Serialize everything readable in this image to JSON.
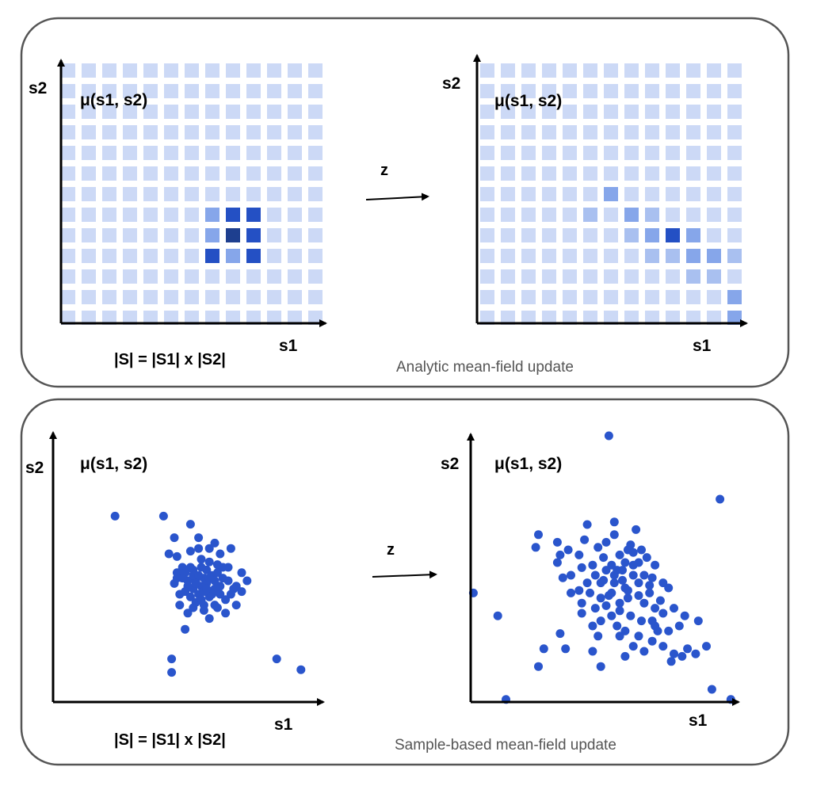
{
  "colors": {
    "cell_light": "#ccd9f6",
    "cell_1": "#a9c0f0",
    "cell_2": "#86a6ea",
    "cell_3": "#3966d4",
    "cell_4": "#2450c4",
    "cell_5": "#1e3f8f",
    "dot": "#2a55cc",
    "panel_border": "#555555"
  },
  "panels": [
    {
      "caption": "Analytic mean-field update",
      "arrow_label": "z",
      "left": {
        "y_axis_label": "s2",
        "x_axis_label": "",
        "mu_label": "μ(s1, s2)",
        "cardinality_label": "|S| = |S1| x |S2|",
        "grid": {
          "cols": 13,
          "rows": 13,
          "highlighted": [
            {
              "col": 7,
              "row": 7,
              "level": 2
            },
            {
              "col": 8,
              "row": 7,
              "level": 4
            },
            {
              "col": 9,
              "row": 7,
              "level": 4
            },
            {
              "col": 7,
              "row": 8,
              "level": 2
            },
            {
              "col": 8,
              "row": 8,
              "level": 5
            },
            {
              "col": 9,
              "row": 8,
              "level": 4
            },
            {
              "col": 7,
              "row": 9,
              "level": 4
            },
            {
              "col": 8,
              "row": 9,
              "level": 2
            },
            {
              "col": 9,
              "row": 9,
              "level": 4
            }
          ]
        }
      },
      "right": {
        "y_axis_label": "s2",
        "x_axis_label": "s1",
        "mu_label": "μ(s1, s2)",
        "grid": {
          "cols": 13,
          "rows": 13,
          "highlighted": [
            {
              "col": 6,
              "row": 6,
              "level": 2
            },
            {
              "col": 5,
              "row": 7,
              "level": 1
            },
            {
              "col": 7,
              "row": 7,
              "level": 2
            },
            {
              "col": 8,
              "row": 7,
              "level": 1
            },
            {
              "col": 7,
              "row": 8,
              "level": 1
            },
            {
              "col": 8,
              "row": 8,
              "level": 2
            },
            {
              "col": 9,
              "row": 8,
              "level": 4
            },
            {
              "col": 10,
              "row": 8,
              "level": 2
            },
            {
              "col": 8,
              "row": 9,
              "level": 1
            },
            {
              "col": 9,
              "row": 9,
              "level": 1
            },
            {
              "col": 10,
              "row": 9,
              "level": 2
            },
            {
              "col": 11,
              "row": 9,
              "level": 2
            },
            {
              "col": 12,
              "row": 9,
              "level": 1
            },
            {
              "col": 10,
              "row": 10,
              "level": 1
            },
            {
              "col": 11,
              "row": 10,
              "level": 1
            },
            {
              "col": 12,
              "row": 11,
              "level": 2
            },
            {
              "col": 12,
              "row": 12,
              "level": 2
            }
          ]
        }
      }
    },
    {
      "caption": "Sample-based mean-field update",
      "arrow_label": "z",
      "left": {
        "y_axis_label": "s2",
        "x_axis_label": "s1",
        "mu_label": "μ(s1, s2)",
        "cardinality_label": "|S| = |S1| x |S2|",
        "points": [
          [
            0.23,
            0.69
          ],
          [
            0.41,
            0.69
          ],
          [
            0.51,
            0.66
          ],
          [
            0.54,
            0.61
          ],
          [
            0.45,
            0.61
          ],
          [
            0.46,
            0.54
          ],
          [
            0.6,
            0.59
          ],
          [
            0.43,
            0.55
          ],
          [
            0.54,
            0.57
          ],
          [
            0.51,
            0.56
          ],
          [
            0.55,
            0.53
          ],
          [
            0.58,
            0.57
          ],
          [
            0.62,
            0.55
          ],
          [
            0.66,
            0.57
          ],
          [
            0.52,
            0.49
          ],
          [
            0.48,
            0.5
          ],
          [
            0.5,
            0.45
          ],
          [
            0.57,
            0.49
          ],
          [
            0.61,
            0.51
          ],
          [
            0.65,
            0.5
          ],
          [
            0.7,
            0.48
          ],
          [
            0.72,
            0.45
          ],
          [
            0.68,
            0.43
          ],
          [
            0.63,
            0.46
          ],
          [
            0.56,
            0.46
          ],
          [
            0.52,
            0.42
          ],
          [
            0.58,
            0.39
          ],
          [
            0.53,
            0.37
          ],
          [
            0.47,
            0.4
          ],
          [
            0.45,
            0.44
          ],
          [
            0.46,
            0.48
          ],
          [
            0.49,
            0.48
          ],
          [
            0.53,
            0.45
          ],
          [
            0.55,
            0.43
          ],
          [
            0.6,
            0.42
          ],
          [
            0.62,
            0.4
          ],
          [
            0.64,
            0.38
          ],
          [
            0.6,
            0.36
          ],
          [
            0.56,
            0.34
          ],
          [
            0.54,
            0.4
          ],
          [
            0.51,
            0.39
          ],
          [
            0.57,
            0.44
          ],
          [
            0.59,
            0.47
          ],
          [
            0.55,
            0.5
          ],
          [
            0.58,
            0.52
          ],
          [
            0.61,
            0.48
          ],
          [
            0.67,
            0.42
          ],
          [
            0.7,
            0.41
          ],
          [
            0.65,
            0.45
          ],
          [
            0.62,
            0.43
          ],
          [
            0.56,
            0.41
          ],
          [
            0.5,
            0.43
          ],
          [
            0.48,
            0.46
          ],
          [
            0.52,
            0.47
          ],
          [
            0.54,
            0.47
          ],
          [
            0.53,
            0.44
          ],
          [
            0.49,
            0.41
          ],
          [
            0.58,
            0.46
          ],
          [
            0.47,
            0.36
          ],
          [
            0.56,
            0.36
          ],
          [
            0.64,
            0.33
          ],
          [
            0.58,
            0.31
          ],
          [
            0.5,
            0.33
          ],
          [
            0.66,
            0.4
          ],
          [
            0.61,
            0.35
          ],
          [
            0.51,
            0.5
          ],
          [
            0.59,
            0.4
          ],
          [
            0.55,
            0.38
          ],
          [
            0.57,
            0.42
          ],
          [
            0.6,
            0.45
          ],
          [
            0.52,
            0.35
          ],
          [
            0.49,
            0.27
          ],
          [
            0.46,
            0.46
          ],
          [
            0.63,
            0.5
          ],
          [
            0.68,
            0.36
          ],
          [
            0.44,
            0.16
          ],
          [
            0.44,
            0.11
          ],
          [
            0.83,
            0.16
          ],
          [
            0.92,
            0.12
          ]
        ]
      },
      "right": {
        "y_axis_label": "s2",
        "x_axis_label": "s1",
        "mu_label": "μ(s1, s2)",
        "points": [
          [
            0.51,
            1.05
          ],
          [
            0.92,
            0.8
          ],
          [
            0.01,
            0.43
          ],
          [
            0.1,
            0.34
          ],
          [
            0.25,
            0.66
          ],
          [
            0.43,
            0.7
          ],
          [
            0.53,
            0.71
          ],
          [
            0.59,
            0.62
          ],
          [
            0.63,
            0.6
          ],
          [
            0.58,
            0.6
          ],
          [
            0.33,
            0.58
          ],
          [
            0.32,
            0.55
          ],
          [
            0.41,
            0.53
          ],
          [
            0.49,
            0.57
          ],
          [
            0.52,
            0.54
          ],
          [
            0.55,
            0.58
          ],
          [
            0.6,
            0.59
          ],
          [
            0.65,
            0.57
          ],
          [
            0.68,
            0.54
          ],
          [
            0.73,
            0.45
          ],
          [
            0.57,
            0.55
          ],
          [
            0.62,
            0.55
          ],
          [
            0.54,
            0.52
          ],
          [
            0.5,
            0.52
          ],
          [
            0.46,
            0.5
          ],
          [
            0.37,
            0.5
          ],
          [
            0.34,
            0.49
          ],
          [
            0.43,
            0.47
          ],
          [
            0.48,
            0.47
          ],
          [
            0.53,
            0.47
          ],
          [
            0.56,
            0.48
          ],
          [
            0.6,
            0.5
          ],
          [
            0.64,
            0.5
          ],
          [
            0.67,
            0.49
          ],
          [
            0.71,
            0.47
          ],
          [
            0.57,
            0.45
          ],
          [
            0.52,
            0.43
          ],
          [
            0.48,
            0.41
          ],
          [
            0.44,
            0.43
          ],
          [
            0.4,
            0.44
          ],
          [
            0.37,
            0.43
          ],
          [
            0.41,
            0.39
          ],
          [
            0.46,
            0.37
          ],
          [
            0.5,
            0.38
          ],
          [
            0.55,
            0.39
          ],
          [
            0.58,
            0.41
          ],
          [
            0.62,
            0.42
          ],
          [
            0.66,
            0.43
          ],
          [
            0.7,
            0.4
          ],
          [
            0.75,
            0.37
          ],
          [
            0.79,
            0.34
          ],
          [
            0.84,
            0.32
          ],
          [
            0.77,
            0.3
          ],
          [
            0.73,
            0.28
          ],
          [
            0.68,
            0.3
          ],
          [
            0.63,
            0.32
          ],
          [
            0.59,
            0.34
          ],
          [
            0.55,
            0.36
          ],
          [
            0.52,
            0.34
          ],
          [
            0.48,
            0.32
          ],
          [
            0.45,
            0.3
          ],
          [
            0.57,
            0.28
          ],
          [
            0.62,
            0.26
          ],
          [
            0.67,
            0.24
          ],
          [
            0.71,
            0.22
          ],
          [
            0.75,
            0.19
          ],
          [
            0.8,
            0.21
          ],
          [
            0.87,
            0.22
          ],
          [
            0.83,
            0.19
          ],
          [
            0.78,
            0.18
          ],
          [
            0.74,
            0.16
          ],
          [
            0.64,
            0.2
          ],
          [
            0.6,
            0.22
          ],
          [
            0.67,
            0.32
          ],
          [
            0.68,
            0.37
          ],
          [
            0.71,
            0.35
          ],
          [
            0.62,
            0.47
          ],
          [
            0.58,
            0.44
          ],
          [
            0.49,
            0.48
          ],
          [
            0.53,
            0.5
          ],
          [
            0.56,
            0.52
          ],
          [
            0.6,
            0.54
          ],
          [
            0.66,
            0.46
          ],
          [
            0.54,
            0.3
          ],
          [
            0.47,
            0.26
          ],
          [
            0.45,
            0.2
          ],
          [
            0.35,
            0.21
          ],
          [
            0.33,
            0.27
          ],
          [
            0.27,
            0.21
          ],
          [
            0.32,
            0.63
          ],
          [
            0.24,
            0.61
          ],
          [
            0.25,
            0.14
          ],
          [
            0.41,
            0.35
          ],
          [
            0.57,
            0.18
          ],
          [
            0.51,
            0.42
          ],
          [
            0.55,
            0.26
          ],
          [
            0.64,
            0.39
          ],
          [
            0.69,
            0.28
          ],
          [
            0.4,
            0.58
          ],
          [
            0.42,
            0.64
          ],
          [
            0.47,
            0.61
          ],
          [
            0.5,
            0.63
          ],
          [
            0.53,
            0.66
          ],
          [
            0.61,
            0.68
          ],
          [
            0.45,
            0.54
          ],
          [
            0.36,
            0.6
          ],
          [
            0.89,
            0.05
          ],
          [
            0.96,
            0.01
          ],
          [
            0.13,
            0.01
          ],
          [
            0.48,
            0.14
          ]
        ]
      }
    }
  ]
}
